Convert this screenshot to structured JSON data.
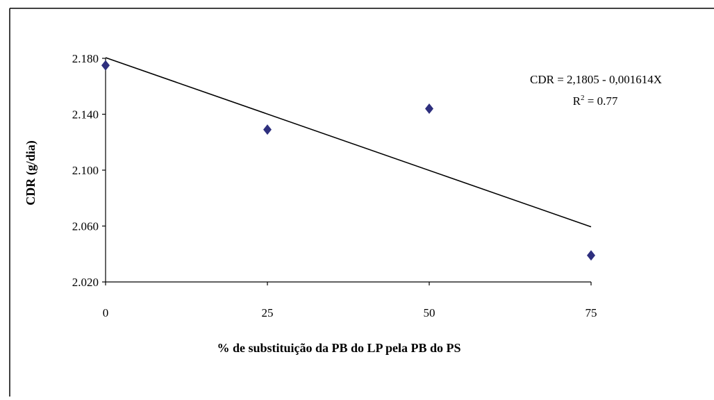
{
  "chart_data": {
    "type": "scatter",
    "xlabel": "% de substituição da PB do LP pela PB do PS",
    "ylabel": "CDR (g/dia)",
    "xlim": [
      0,
      75
    ],
    "ylim": [
      2.02,
      2.18
    ],
    "x_ticks": [
      0,
      25,
      50,
      75
    ],
    "x_tick_labels": [
      "0",
      "25",
      "50",
      "75"
    ],
    "y_ticks": [
      2.02,
      2.06,
      2.1,
      2.14,
      2.18
    ],
    "y_tick_labels": [
      "2.020",
      "2.060",
      "2.100",
      "2.140",
      "2.180"
    ],
    "grid": false,
    "points": [
      {
        "x": 0,
        "y": 2.175
      },
      {
        "x": 25,
        "y": 2.129
      },
      {
        "x": 50,
        "y": 2.144
      },
      {
        "x": 75,
        "y": 2.039
      }
    ],
    "trendline": {
      "intercept": 2.1805,
      "slope": -0.001614,
      "x_range": [
        0,
        75
      ]
    },
    "marker_color": "#2e2f7e",
    "line_color": "#000000",
    "annotations": {
      "equation": "CDR = 2,1805 - 0,001614X",
      "r2_prefix": "R",
      "r2_sup": "2",
      "r2_suffix": " = 0.77"
    }
  }
}
